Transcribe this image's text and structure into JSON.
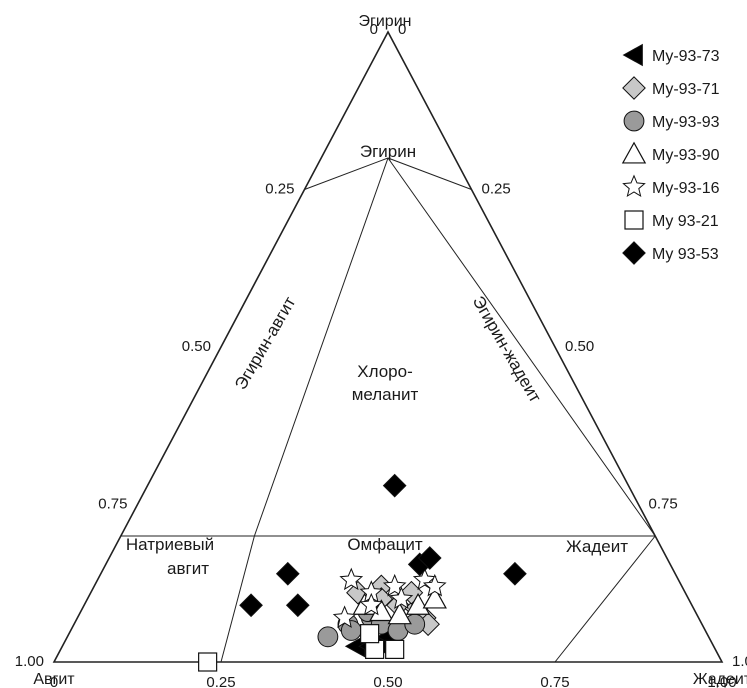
{
  "chart_data": {
    "type": "scatter",
    "subtype": "ternary",
    "vertices": {
      "top": "Эгирин",
      "left": "Авгит",
      "right": "Жадеит"
    },
    "ticks": {
      "bottom": [
        "0",
        "0.25",
        "0.50",
        "0.75",
        "1.00"
      ],
      "left": [
        "0",
        "0.25",
        "0.50",
        "0.75",
        "1.00"
      ],
      "right": [
        "1.00",
        "0.75",
        "0.50",
        "0.25",
        "0"
      ]
    },
    "fields": {
      "aegirine": "Эгирин",
      "aegirine_augite": "Эгирин-авгит",
      "aegirine_jadeite": "Эгирин-жадеит",
      "chloromelanite_1": "Хлоро-",
      "chloromelanite_2": "меланит",
      "omphacite": "Омфацит",
      "jadeite": "Жадеит",
      "na_augite_1": "Натриевый",
      "na_augite_2": "авгит"
    },
    "legend_position": "top-right",
    "series": [
      {
        "name": "My-93-73",
        "marker": "triangle-left",
        "color": "#000000",
        "points": [
          [
            0.45,
            0.03
          ],
          [
            0.47,
            0.03
          ],
          [
            0.44,
            0.025
          ],
          [
            0.46,
            0.025
          ],
          [
            0.48,
            0.04
          ]
        ]
      },
      {
        "name": "My-93-71",
        "marker": "diamond",
        "color": "#c8c8c8",
        "points": [
          [
            0.4,
            0.11
          ],
          [
            0.43,
            0.12
          ],
          [
            0.47,
            0.09
          ],
          [
            0.5,
            0.085
          ],
          [
            0.52,
            0.07
          ],
          [
            0.53,
            0.06
          ],
          [
            0.44,
            0.1
          ],
          [
            0.48,
            0.11
          ]
        ]
      },
      {
        "name": "My-93-93",
        "marker": "circle",
        "color": "#9a9a9a",
        "points": [
          [
            0.39,
            0.04
          ],
          [
            0.41,
            0.06
          ],
          [
            0.42,
            0.05
          ],
          [
            0.44,
            0.07
          ],
          [
            0.46,
            0.06
          ],
          [
            0.49,
            0.05
          ],
          [
            0.51,
            0.06
          ],
          [
            0.43,
            0.08
          ]
        ]
      },
      {
        "name": "My-93-90",
        "marker": "triangle-up",
        "color": "#ffffff",
        "points": [
          [
            0.42,
            0.09
          ],
          [
            0.45,
            0.08
          ],
          [
            0.48,
            0.075
          ],
          [
            0.5,
            0.09
          ],
          [
            0.52,
            0.1
          ]
        ]
      },
      {
        "name": "My-93-16",
        "marker": "star",
        "color": "#ffffff",
        "points": [
          [
            0.38,
            0.13
          ],
          [
            0.42,
            0.11
          ],
          [
            0.45,
            0.12
          ],
          [
            0.49,
            0.13
          ],
          [
            0.51,
            0.12
          ],
          [
            0.43,
            0.09
          ],
          [
            0.47,
            0.1
          ],
          [
            0.4,
            0.07
          ]
        ]
      },
      {
        "name": "My 93-21",
        "marker": "square",
        "color": "#ffffff",
        "points": [
          [
            0.23,
            0.0
          ],
          [
            0.47,
            0.02
          ],
          [
            0.5,
            0.02
          ],
          [
            0.45,
            0.045
          ]
        ]
      },
      {
        "name": "My 93-53",
        "marker": "diamond",
        "color": "#000000",
        "points": [
          [
            0.37,
            0.28
          ],
          [
            0.28,
            0.14
          ],
          [
            0.25,
            0.09
          ],
          [
            0.32,
            0.09
          ],
          [
            0.62,
            0.14
          ],
          [
            0.47,
            0.155
          ],
          [
            0.48,
            0.165
          ]
        ]
      }
    ]
  }
}
